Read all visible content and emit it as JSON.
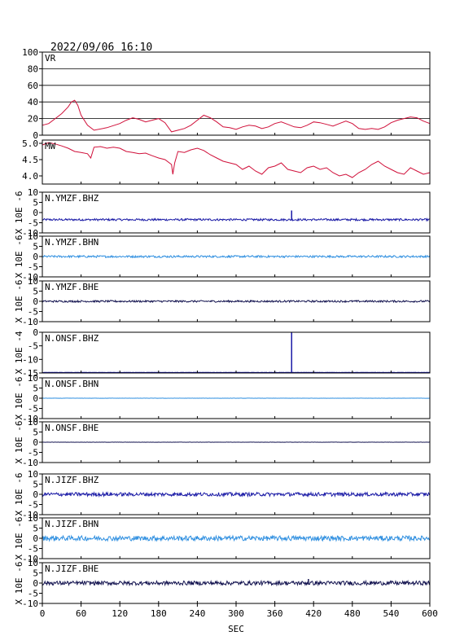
{
  "header": {
    "datetime": "2022/09/06  16:10"
  },
  "x_axis": {
    "label": "SEC",
    "range": [
      0,
      600
    ],
    "ticks": [
      0,
      60,
      120,
      180,
      240,
      300,
      360,
      420,
      480,
      540,
      600
    ]
  },
  "chart_data": [
    {
      "type": "line",
      "name": "VR",
      "ylim": [
        0,
        100
      ],
      "yticks": [
        "100",
        "80",
        "60",
        "40",
        "20",
        "0"
      ],
      "grid": true,
      "color": "#d0103a",
      "x": [
        0,
        10,
        20,
        30,
        40,
        45,
        50,
        55,
        60,
        70,
        80,
        100,
        120,
        130,
        140,
        150,
        160,
        170,
        180,
        190,
        200,
        210,
        220,
        230,
        240,
        250,
        260,
        270,
        280,
        290,
        300,
        310,
        320,
        330,
        340,
        350,
        360,
        370,
        380,
        390,
        400,
        410,
        420,
        430,
        440,
        450,
        460,
        470,
        480,
        490,
        500,
        510,
        520,
        530,
        540,
        550,
        560,
        570,
        580,
        590,
        600
      ],
      "y": [
        12,
        14,
        20,
        26,
        34,
        40,
        42,
        36,
        24,
        12,
        6,
        9,
        14,
        18,
        21,
        19,
        16,
        18,
        20,
        15,
        4,
        6,
        8,
        12,
        18,
        24,
        21,
        16,
        10,
        9,
        7,
        10,
        12,
        11,
        8,
        10,
        14,
        16,
        13,
        10,
        9,
        12,
        16,
        15,
        13,
        11,
        14,
        17,
        14,
        8,
        7,
        8,
        7,
        10,
        15,
        18,
        20,
        22,
        21,
        17,
        14
      ]
    },
    {
      "type": "line",
      "name": "MW",
      "ylim": [
        3.75,
        5.1
      ],
      "yticks": [
        "5.0",
        "4.5",
        "4.0"
      ],
      "color": "#d0103a",
      "x": [
        0,
        10,
        20,
        30,
        40,
        50,
        60,
        70,
        75,
        80,
        90,
        100,
        110,
        120,
        130,
        140,
        150,
        160,
        170,
        180,
        190,
        200,
        202,
        205,
        210,
        220,
        230,
        240,
        250,
        260,
        270,
        280,
        290,
        300,
        310,
        320,
        330,
        340,
        350,
        360,
        370,
        380,
        390,
        400,
        410,
        420,
        430,
        440,
        450,
        460,
        470,
        480,
        490,
        500,
        510,
        520,
        530,
        540,
        550,
        560,
        570,
        580,
        590,
        600
      ],
      "y": [
        4.95,
        5.02,
        4.98,
        4.92,
        4.85,
        4.75,
        4.72,
        4.68,
        4.55,
        4.88,
        4.9,
        4.85,
        4.88,
        4.85,
        4.75,
        4.72,
        4.68,
        4.7,
        4.62,
        4.55,
        4.5,
        4.35,
        4.05,
        4.4,
        4.75,
        4.72,
        4.8,
        4.85,
        4.78,
        4.65,
        4.55,
        4.45,
        4.4,
        4.35,
        4.2,
        4.3,
        4.15,
        4.05,
        4.25,
        4.3,
        4.4,
        4.2,
        4.15,
        4.1,
        4.25,
        4.3,
        4.2,
        4.25,
        4.1,
        4.0,
        4.05,
        3.95,
        4.1,
        4.2,
        4.35,
        4.45,
        4.3,
        4.2,
        4.1,
        4.05,
        4.25,
        4.15,
        4.05,
        4.1
      ]
    },
    {
      "type": "line",
      "name": "N.YMZF.BHZ",
      "ylabel": "X 10E -6",
      "ylim": [
        -10,
        10
      ],
      "yticks": [
        "10",
        "5",
        "0",
        "-5",
        "-10"
      ],
      "color": "#1a1aa6",
      "baseline": -3.5,
      "noise": 0.5,
      "spikes": [
        {
          "x": 386,
          "y": 1.0
        }
      ]
    },
    {
      "type": "line",
      "name": "N.YMZF.BHN",
      "ylabel": "X 10E -6",
      "ylim": [
        -10,
        10
      ],
      "yticks": [
        "10",
        "5",
        "0",
        "-5",
        "-10"
      ],
      "color": "#2f8fe0",
      "baseline": 0.0,
      "noise": 0.5,
      "spikes": []
    },
    {
      "type": "line",
      "name": "N.YMZF.BHE",
      "ylabel": "X 10E -6",
      "ylim": [
        -10,
        10
      ],
      "yticks": [
        "10",
        "5",
        "0",
        "-5",
        "-10"
      ],
      "color": "#141450",
      "baseline": 0.0,
      "noise": 0.45,
      "spikes": []
    },
    {
      "type": "line",
      "name": "N.ONSF.BHZ",
      "ylabel": "X 10E -4",
      "ylim": [
        -15,
        0
      ],
      "yticks": [
        "0",
        "-5",
        "-10",
        "-15"
      ],
      "color": "#1a1aa6",
      "baseline": -14.8,
      "noise": 0.05,
      "spikes": [
        {
          "x": 386,
          "y": 0.0
        }
      ]
    },
    {
      "type": "line",
      "name": "N.ONSF.BHN",
      "ylabel": "X 10E -6",
      "ylim": [
        -10,
        10
      ],
      "yticks": [
        "10",
        "5",
        "0",
        "-5",
        "-10"
      ],
      "color": "#2f8fe0",
      "baseline": 0.0,
      "noise": 0.05,
      "spikes": []
    },
    {
      "type": "line",
      "name": "N.ONSF.BHE",
      "ylabel": "X 10E -6",
      "ylim": [
        -10,
        10
      ],
      "yticks": [
        "10",
        "5",
        "0",
        "-5",
        "-10"
      ],
      "color": "#141450",
      "baseline": 0.0,
      "noise": 0.05,
      "spikes": []
    },
    {
      "type": "line",
      "name": "N.JIZF.BHZ",
      "ylabel": "X 10E -6",
      "ylim": [
        -10,
        10
      ],
      "yticks": [
        "10",
        "5",
        "0",
        "-5",
        "-10"
      ],
      "color": "#1a1aa6",
      "baseline": 0.0,
      "noise": 0.9,
      "spikes": []
    },
    {
      "type": "line",
      "name": "N.JIZF.BHN",
      "ylabel": "X 10E -6",
      "ylim": [
        -10,
        10
      ],
      "yticks": [
        "10",
        "5",
        "0",
        "-5",
        "-10"
      ],
      "color": "#2f8fe0",
      "baseline": 0.0,
      "noise": 1.2,
      "spikes": []
    },
    {
      "type": "line",
      "name": "N.JIZF.BHE",
      "ylabel": "X 10E -6",
      "ylim": [
        -10,
        10
      ],
      "yticks": [
        "10",
        "5",
        "0",
        "-5",
        "-10"
      ],
      "color": "#141450",
      "baseline": 0.0,
      "noise": 1.0,
      "spikes": [
        {
          "x": 412,
          "y": 2.0
        }
      ]
    }
  ]
}
